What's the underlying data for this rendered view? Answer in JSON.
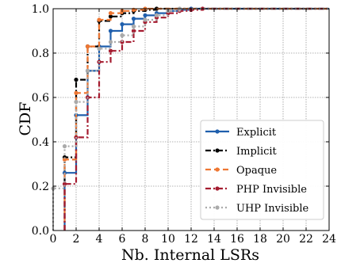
{
  "chart_data": {
    "type": "line",
    "title": "",
    "xlabel": "Nb. Internal LSRs",
    "ylabel": "CDF",
    "xlim": [
      0,
      24
    ],
    "ylim": [
      0,
      1
    ],
    "xticks": [
      0,
      2,
      4,
      6,
      8,
      10,
      12,
      14,
      16,
      18,
      20,
      22,
      24
    ],
    "yticks": [
      0.0,
      0.2,
      0.4,
      0.6,
      0.8,
      1.0
    ],
    "x_tick_labels": [
      "0",
      "2",
      "4",
      "6",
      "8",
      "10",
      "12",
      "14",
      "16",
      "18",
      "20",
      "22",
      "24"
    ],
    "y_tick_labels": [
      "0.0",
      "0.2",
      "0.4",
      "0.6",
      "0.8",
      "1.0"
    ],
    "grid": true,
    "legend_position": "lower-right",
    "step": true,
    "series": [
      {
        "name": "Explicit",
        "color": "#1f5fad",
        "dash": "solid",
        "x": [
          1,
          2,
          3,
          4,
          5,
          6,
          7,
          8,
          9,
          10,
          11,
          12,
          24
        ],
        "y": [
          0.26,
          0.52,
          0.72,
          0.83,
          0.9,
          0.93,
          0.955,
          0.97,
          0.98,
          0.99,
          0.995,
          1.0,
          1.0
        ]
      },
      {
        "name": "Implicit",
        "color": "#000000",
        "dash": "dashdot",
        "x": [
          1,
          2,
          3,
          4,
          5,
          6,
          7,
          8,
          9,
          24
        ],
        "y": [
          0.33,
          0.68,
          0.83,
          0.945,
          0.965,
          0.98,
          0.99,
          0.995,
          1.0,
          1.0
        ]
      },
      {
        "name": "Opaque",
        "color": "#ee7733",
        "dash": "dashed",
        "x": [
          1,
          2,
          3,
          4,
          5,
          6,
          7,
          8,
          24
        ],
        "y": [
          0.32,
          0.62,
          0.83,
          0.95,
          0.98,
          0.99,
          0.995,
          1.0,
          1.0
        ]
      },
      {
        "name": "PHP Invisible",
        "color": "#a51c30",
        "dash": "dashdot",
        "x": [
          1,
          2,
          3,
          4,
          5,
          6,
          7,
          8,
          9,
          10,
          11,
          12,
          13,
          24
        ],
        "y": [
          0.21,
          0.42,
          0.6,
          0.76,
          0.81,
          0.85,
          0.9,
          0.94,
          0.96,
          0.98,
          0.99,
          0.995,
          1.0,
          1.0
        ]
      },
      {
        "name": "UHP Invisible",
        "color": "#aaaaaa",
        "dash": "dotted",
        "x": [
          0,
          1,
          2,
          3,
          4,
          5,
          6,
          7,
          8,
          9,
          10,
          11,
          24
        ],
        "y": [
          0.19,
          0.38,
          0.58,
          0.72,
          0.82,
          0.85,
          0.88,
          0.92,
          0.95,
          0.97,
          0.99,
          1.0,
          1.0
        ]
      }
    ]
  }
}
